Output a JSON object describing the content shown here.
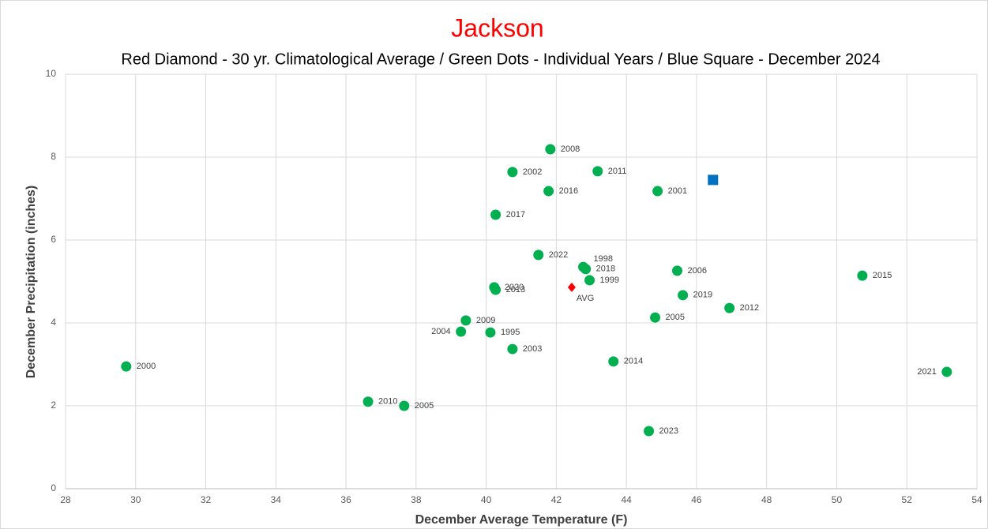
{
  "chart_data": {
    "type": "scatter",
    "title": "Jackson",
    "subtitle": "Red Diamond - 30 yr. Climatological Average / Green Dots - Individual Years / Blue Square - December 2024",
    "xlabel": "December Average Temperature (F)",
    "ylabel": "December Precipitation (inches)",
    "xlim": [
      28,
      54
    ],
    "xticks": [
      28,
      30,
      32,
      34,
      36,
      38,
      40,
      42,
      44,
      46,
      48,
      50,
      52,
      54
    ],
    "ylim": [
      0,
      10
    ],
    "yticks": [
      0,
      2,
      4,
      6,
      8,
      10
    ],
    "grid": true,
    "series": [
      {
        "color": "#00b050",
        "marker": "circle",
        "x": [
          29.73,
          36.63,
          37.66,
          39.28,
          39.42,
          40.12,
          40.75,
          40.23,
          40.27,
          40.27,
          40.75,
          41.49,
          41.83,
          41.78,
          42.77,
          42.84,
          42.95,
          43.18,
          43.63,
          44.64,
          44.82,
          44.89,
          45.45,
          45.61,
          46.94,
          50.73,
          53.14
        ],
        "values": [
          2.95,
          2.1,
          2.0,
          3.79,
          4.06,
          3.77,
          3.37,
          4.86,
          4.8,
          6.61,
          7.64,
          5.64,
          8.19,
          7.18,
          5.35,
          5.3,
          5.03,
          7.66,
          3.07,
          1.39,
          4.13,
          7.18,
          5.26,
          4.67,
          4.36,
          5.14,
          2.82
        ],
        "labels": [
          "2000",
          "2010",
          "2005",
          "2004",
          "2009",
          "1995",
          "2003",
          "2020",
          "2013",
          "2017",
          "2002",
          "2022",
          "2008",
          "2016",
          "1998",
          "2018",
          "1999",
          "2011",
          "2014",
          "2023",
          "2005",
          "2001",
          "2006",
          "2019",
          "2012",
          "2015",
          "2021"
        ]
      },
      {
        "color": "#ff0000",
        "marker": "diamond",
        "x": [
          42.44
        ],
        "values": [
          4.86
        ],
        "labels": [
          "AVG"
        ]
      },
      {
        "color": "#0070c0",
        "marker": "square",
        "x": [
          46.47
        ],
        "values": [
          7.45
        ]
      }
    ]
  }
}
